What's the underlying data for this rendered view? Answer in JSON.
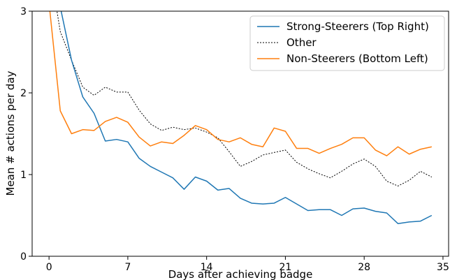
{
  "chart_data": {
    "type": "line",
    "title": "",
    "xlabel": "Days after achieving badge",
    "ylabel": "Mean # actions per day",
    "xlim": [
      -1.5,
      35.5
    ],
    "ylim": [
      0,
      3
    ],
    "xticks": [
      0,
      7,
      14,
      21,
      28,
      35
    ],
    "yticks": [
      0,
      1,
      2,
      3
    ],
    "grid": false,
    "legend_position": "top-right",
    "x": [
      0,
      1,
      2,
      3,
      4,
      5,
      6,
      7,
      8,
      9,
      10,
      11,
      12,
      13,
      14,
      15,
      16,
      17,
      18,
      19,
      20,
      21,
      22,
      23,
      24,
      25,
      26,
      27,
      28,
      29,
      30,
      31,
      32,
      33,
      34
    ],
    "series": [
      {
        "name": "Strong-Steerers (Top Right)",
        "color": "#1f77b4",
        "style": "solid",
        "values": [
          3.4,
          3.05,
          2.4,
          1.95,
          1.75,
          1.41,
          1.43,
          1.4,
          1.2,
          1.1,
          1.03,
          0.96,
          0.82,
          0.97,
          0.92,
          0.81,
          0.83,
          0.71,
          0.65,
          0.64,
          0.65,
          0.72,
          0.64,
          0.56,
          0.57,
          0.57,
          0.5,
          0.58,
          0.59,
          0.55,
          0.53,
          0.4,
          0.42,
          0.43,
          0.5
        ]
      },
      {
        "name": "Other",
        "color": "#000000",
        "style": "dotted",
        "values": [
          3.6,
          2.75,
          2.4,
          2.07,
          1.97,
          2.07,
          2.01,
          2.01,
          1.79,
          1.62,
          1.54,
          1.58,
          1.55,
          1.57,
          1.52,
          1.45,
          1.28,
          1.1,
          1.16,
          1.24,
          1.27,
          1.3,
          1.15,
          1.07,
          1.01,
          0.96,
          1.04,
          1.13,
          1.19,
          1.1,
          0.92,
          0.86,
          0.93,
          1.04,
          0.97
        ]
      },
      {
        "name": "Non-Steerers (Bottom Left)",
        "color": "#ff7f0e",
        "style": "solid",
        "values": [
          3.1,
          1.78,
          1.5,
          1.55,
          1.54,
          1.65,
          1.7,
          1.64,
          1.46,
          1.35,
          1.4,
          1.38,
          1.48,
          1.6,
          1.55,
          1.43,
          1.4,
          1.45,
          1.37,
          1.34,
          1.57,
          1.53,
          1.32,
          1.32,
          1.26,
          1.32,
          1.37,
          1.45,
          1.45,
          1.3,
          1.23,
          1.34,
          1.25,
          1.31,
          1.34
        ]
      }
    ]
  }
}
